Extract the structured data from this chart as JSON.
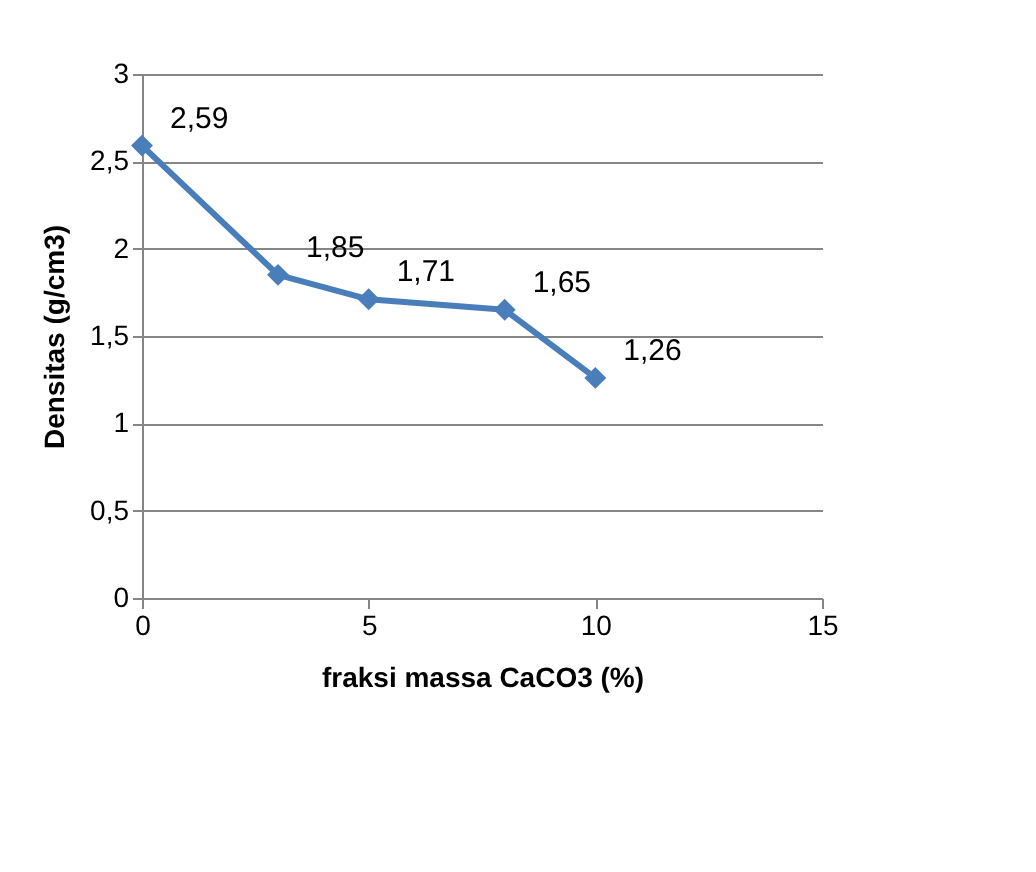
{
  "chart_data": {
    "type": "line",
    "xlabel": "fraksi massa CaCO3 (%)",
    "ylabel": "Densitas (g/cm3)",
    "x": [
      0,
      3,
      5,
      8,
      10
    ],
    "series": [
      {
        "color": "#4a7ebb",
        "values": [
          2.59,
          1.85,
          1.71,
          1.65,
          1.26
        ],
        "value_labels": [
          "2,59",
          "1,85",
          "1,71",
          "1,65",
          "1,26"
        ]
      }
    ],
    "xlim": [
      0,
      15
    ],
    "xticks": [
      0,
      5,
      10,
      15
    ],
    "ylim": [
      0,
      3
    ],
    "yticks": [
      0,
      {
        "value": 0.5,
        "label": "0,5"
      },
      1,
      {
        "value": 1.5,
        "label": "1,5"
      },
      2,
      {
        "value": 2.5,
        "label": "2,5"
      },
      3
    ],
    "grid": "y",
    "marker": "diamond",
    "line_style": "solid"
  }
}
